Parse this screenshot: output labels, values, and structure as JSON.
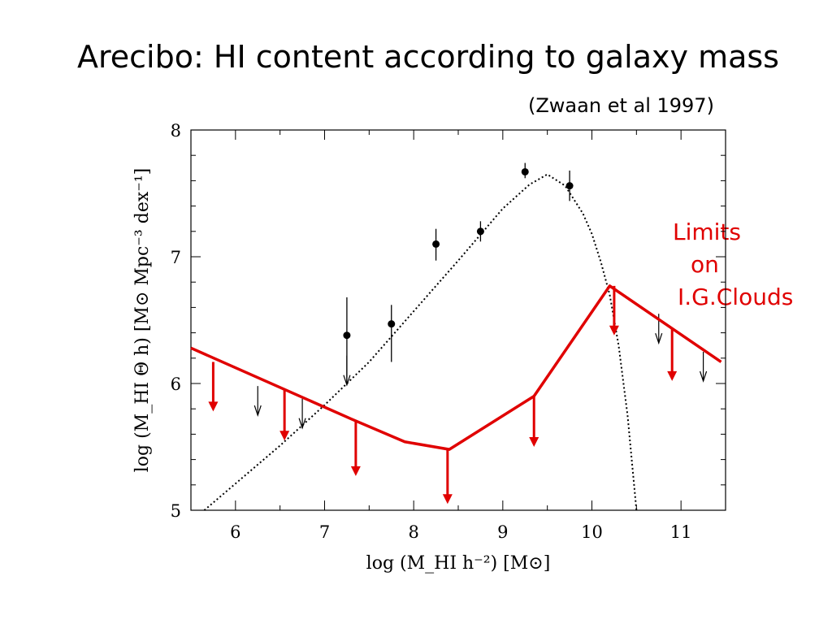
{
  "slide": {
    "title": "Arecibo:  HI content according to galaxy mass",
    "citation": "(Zwaan et al 1997)",
    "annotation_lines": [
      "Limits",
      "on",
      "I.G.Clouds"
    ],
    "annotation_color": "#e00000"
  },
  "chart_data": {
    "type": "scatter",
    "xlabel": "log (M_HI h⁻²) [M⊙]",
    "ylabel": "log (M_HI Θ h) [M⊙ Mpc⁻³ dex⁻¹]",
    "xlim": [
      5.5,
      11.5
    ],
    "ylim": [
      5,
      8
    ],
    "xticks": [
      "6",
      "7",
      "8",
      "9",
      "10",
      "11"
    ],
    "yticks": [
      "5",
      "6",
      "7",
      "8"
    ],
    "grid": false,
    "series": [
      {
        "kind": "measurements",
        "color": "#000000",
        "points": [
          {
            "x": 7.25,
            "y": 6.38,
            "ylo": 6.0,
            "yhi": 6.68
          },
          {
            "x": 7.75,
            "y": 6.47,
            "ylo": 6.17,
            "yhi": 6.62
          },
          {
            "x": 8.25,
            "y": 7.1,
            "ylo": 6.97,
            "yhi": 7.22
          },
          {
            "x": 8.75,
            "y": 7.2,
            "ylo": 7.12,
            "yhi": 7.28
          },
          {
            "x": 9.25,
            "y": 7.67,
            "ylo": 7.62,
            "yhi": 7.74
          },
          {
            "x": 9.75,
            "y": 7.56,
            "ylo": 7.44,
            "yhi": 7.68
          }
        ]
      },
      {
        "kind": "upper-limits",
        "color": "#000000",
        "points": [
          {
            "x": 7.25,
            "y": 6.22
          },
          {
            "x": 6.25,
            "y": 5.98
          },
          {
            "x": 6.75,
            "y": 5.88
          },
          {
            "x": 10.75,
            "y": 6.55
          },
          {
            "x": 11.25,
            "y": 6.25
          }
        ]
      },
      {
        "kind": "fit-curve",
        "color": "#000000",
        "x": [
          5.65,
          6.0,
          6.5,
          7.0,
          7.5,
          8.0,
          8.5,
          9.0,
          9.3,
          9.5,
          9.7,
          9.9,
          10.0,
          10.1,
          10.2,
          10.3,
          10.4,
          10.5
        ],
        "y": [
          5.0,
          5.21,
          5.51,
          5.83,
          6.17,
          6.57,
          6.97,
          7.38,
          7.57,
          7.65,
          7.56,
          7.34,
          7.18,
          6.96,
          6.7,
          6.3,
          5.75,
          5.0
        ]
      },
      {
        "kind": "IG-cloud-limits",
        "color": "#e00000",
        "x": [
          5.5,
          7.3,
          7.9,
          8.4,
          9.35,
          10.2,
          11.45
        ],
        "y": [
          6.28,
          5.72,
          5.54,
          5.48,
          5.9,
          6.77,
          6.17
        ],
        "arrows": [
          {
            "x": 5.75,
            "y0": 6.17,
            "y1": 5.78
          },
          {
            "x": 6.55,
            "y0": 5.95,
            "y1": 5.55
          },
          {
            "x": 7.35,
            "y0": 5.7,
            "y1": 5.27
          },
          {
            "x": 8.38,
            "y0": 5.48,
            "y1": 5.05
          },
          {
            "x": 9.35,
            "y0": 5.9,
            "y1": 5.5
          },
          {
            "x": 10.25,
            "y0": 6.77,
            "y1": 6.38
          },
          {
            "x": 10.9,
            "y0": 6.43,
            "y1": 6.02
          }
        ]
      }
    ]
  }
}
